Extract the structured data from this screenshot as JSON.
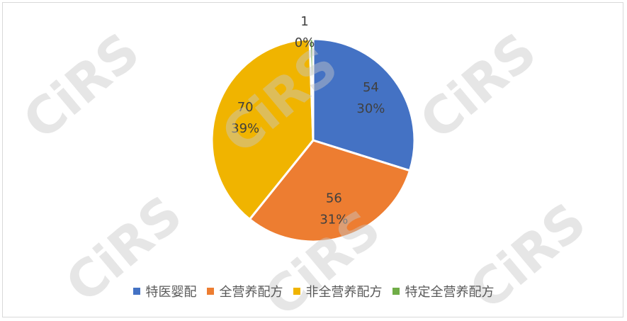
{
  "watermark": "CiRS",
  "chart_data": {
    "type": "pie",
    "start_angle": "top, clockwise",
    "legend_position": "bottom",
    "categories": [
      "特医婴配",
      "全营养配方",
      "非全营养配方",
      "特定全营养配方"
    ],
    "values": [
      54,
      56,
      70,
      1
    ],
    "percent_labels": [
      "30%",
      "31%",
      "39%",
      "0%"
    ],
    "colors": [
      "#4472C4",
      "#ED7D31",
      "#F0B400",
      "#70AD47"
    ]
  }
}
